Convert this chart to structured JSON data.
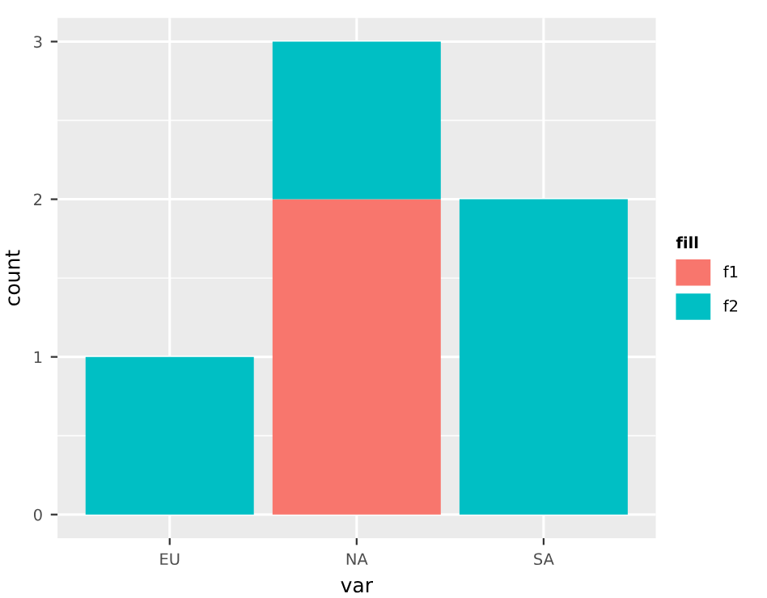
{
  "chart_data": {
    "type": "bar",
    "stacked": true,
    "xlabel": "var",
    "ylabel": "count",
    "legend_title": "fill",
    "categories": [
      "EU",
      "NA",
      "SA"
    ],
    "series": [
      {
        "name": "f1",
        "color": "#f8766d",
        "values": [
          0,
          2,
          0
        ]
      },
      {
        "name": "f2",
        "color": "#00bfc4",
        "values": [
          1,
          1,
          2
        ]
      }
    ],
    "ylim": [
      -0.15,
      3.15
    ],
    "yticks": [
      0,
      1,
      2,
      3
    ],
    "grid": true,
    "legend": "right"
  }
}
